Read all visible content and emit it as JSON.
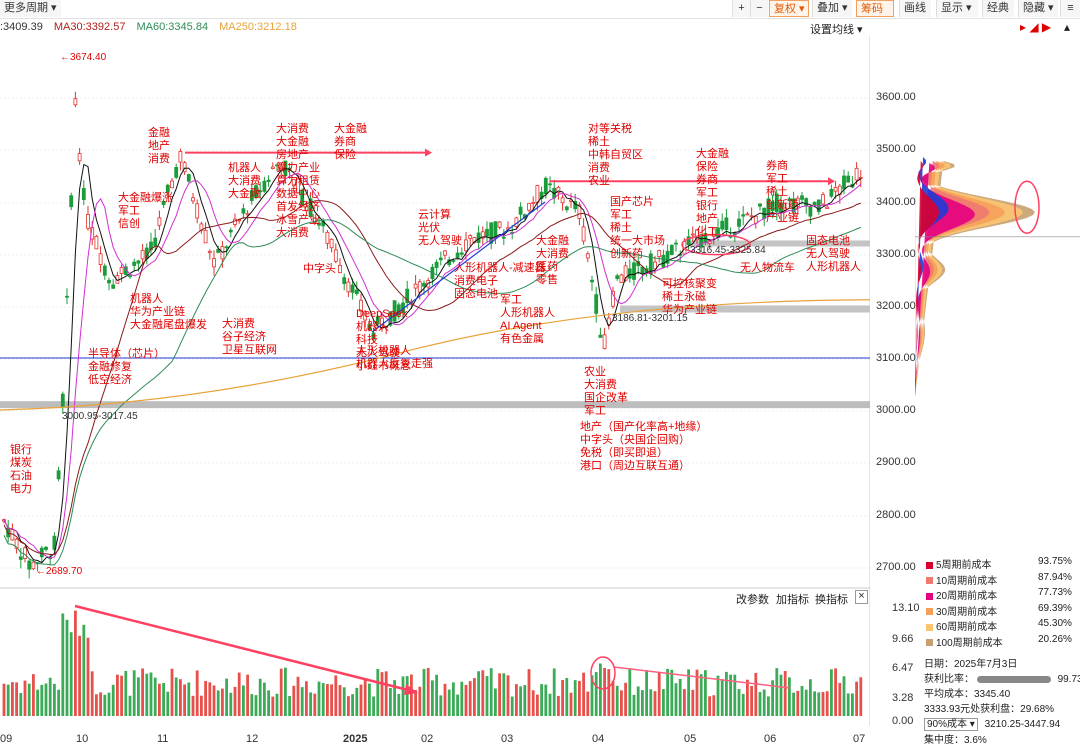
{
  "toolbar": {
    "period_btn": "更多周期",
    "plus": "+",
    "minus": "−",
    "fuquan": "复权",
    "diejia": "叠加",
    "choumou": "筹码",
    "huaxian": "画线",
    "xianshi": "显示",
    "jingdian": "经典",
    "yincang": "隐藏"
  },
  "ma_row": {
    "prefix": ":3409.39",
    "ma30": "MA30:3392.57",
    "ma60": "MA60:3345.84",
    "ma250": "MA250:3212.18",
    "setting": "设置均线"
  },
  "colors": {
    "up": "#e4312b",
    "down": "#1a9c3a",
    "ma5": "#111111",
    "ma10": "#d12fd1",
    "ma30": "#8b1a1a",
    "ma60": "#2e8b57",
    "ma250": "#e8a33a",
    "blue": "#1f3bd6"
  },
  "price_axis": [
    "3600.00",
    "3500.00",
    "3400.00",
    "3300.00",
    "3200.00",
    "3100.00",
    "3000.00",
    "2900.00",
    "2800.00",
    "2700.00"
  ],
  "vol_axis": [
    "13.10",
    "9.66",
    "6.47",
    "3.28",
    "0.00"
  ],
  "x_axis": [
    "09",
    "10",
    "11",
    "12",
    "2025",
    "02",
    "03",
    "04",
    "05",
    "06",
    "07"
  ],
  "price_labels": {
    "high": "←3674.40",
    "low": "←2689.70",
    "range1": "3000.95-3017.45",
    "range2": "3186.81-3201.15",
    "range3": "3316.45-3325.84"
  },
  "annotations": [
    {
      "id": "a1",
      "lines": [
        "银行",
        "煤炭",
        "石油",
        "电力"
      ]
    },
    {
      "id": "a2",
      "lines": [
        "半导体（芯片）",
        "金融修复",
        "低空经济"
      ]
    },
    {
      "id": "a3",
      "lines": [
        "金融",
        "地产",
        "消费"
      ]
    },
    {
      "id": "a4",
      "lines": [
        "大金融爆涨",
        "军工",
        "信创"
      ]
    },
    {
      "id": "a5",
      "lines": [
        "机器人",
        "华为产业链",
        "大金融尾盘爆发"
      ]
    },
    {
      "id": "a6",
      "lines": [
        "机器人",
        "大消费",
        "大金融"
      ]
    },
    {
      "id": "a7",
      "lines": [
        "大消费",
        "谷子经济",
        "卫星互联网"
      ]
    },
    {
      "id": "a8",
      "lines": [
        "大消费",
        "大金融",
        "房地产",
        "算力产业",
        "算力租赁",
        "数据中心",
        "首发经济",
        "冰雪产业",
        "大消费"
      ]
    },
    {
      "id": "a9",
      "lines": [
        "大金融",
        "券商",
        "保险"
      ]
    },
    {
      "id": "a10",
      "lines": [
        "中字头"
      ]
    },
    {
      "id": "a11",
      "lines": [
        "DeepSeek",
        "机器人",
        "科技",
        "无人驾驶",
        "小红书概念"
      ]
    },
    {
      "id": "a12",
      "lines": [
        "云计算",
        "光伏",
        "无人驾驶"
      ]
    },
    {
      "id": "a13",
      "lines": [
        "人形机器人",
        "机器人反复走强"
      ]
    },
    {
      "id": "a14",
      "lines": [
        "人形机器人-减速器",
        "消费电子",
        "固态电池"
      ]
    },
    {
      "id": "a15",
      "lines": [
        "军工",
        "人形机器人",
        "AI Agent",
        "有色金属"
      ]
    },
    {
      "id": "a16",
      "lines": [
        "大金融",
        "大消费",
        "医药",
        "零售"
      ]
    },
    {
      "id": "a17",
      "lines": [
        "对等关税",
        "稀土",
        "中韩自贸区",
        "消费",
        "农业"
      ]
    },
    {
      "id": "a18",
      "lines": [
        "国产芯片",
        "军工",
        "稀土",
        "统一大市场",
        "创新药"
      ]
    },
    {
      "id": "a19",
      "lines": [
        "农业",
        "大消费",
        "国企改革",
        "军工"
      ]
    },
    {
      "id": "a20",
      "lines": [
        "地产（国产化率高+地缘）",
        "中字头（央国企回购）",
        "免税（即买即退）",
        "港口（周边互联互通）"
      ]
    },
    {
      "id": "a21",
      "lines": [
        "可控核聚变",
        "稀土永磁",
        "华为产业链"
      ]
    },
    {
      "id": "a22",
      "lines": [
        "大金融",
        "保险",
        "券商",
        "军工",
        "银行",
        "地产",
        "化工"
      ]
    },
    {
      "id": "a23",
      "lines": [
        "券商",
        "军工",
        "稀土",
        "创新药",
        "产业链"
      ]
    },
    {
      "id": "a24",
      "lines": [
        "无人物流车"
      ]
    },
    {
      "id": "a25",
      "lines": [
        "固态电池",
        "无人驾驶",
        "人形机器人"
      ]
    }
  ],
  "vol_controls": {
    "gaicanshu": "改参数",
    "jiazhibiao": "加指标",
    "huanzhibiao": "换指标",
    "close": "×"
  },
  "chip_legend": [
    {
      "label": "5周期前成本",
      "pct": "93.75%",
      "color": "#d9002f"
    },
    {
      "label": "10周期前成本",
      "pct": "87.94%",
      "color": "#f07a70"
    },
    {
      "label": "20周期前成本",
      "pct": "77.73%",
      "color": "#e4007f"
    },
    {
      "label": "30周期前成本",
      "pct": "69.39%",
      "color": "#f5a05a"
    },
    {
      "label": "60周期前成本",
      "pct": "45.30%",
      "color": "#fcc470"
    },
    {
      "label": "100周期前成本",
      "pct": "20.26%",
      "color": "#c8a070"
    }
  ],
  "chip_info": {
    "date": "日期：2025年7月3日",
    "profit_label": "获利比率：",
    "profit_value": "99.73%",
    "avg_cost": "平均成本：3345.40",
    "profit_line": "3333.93元处获利盘：29.68%",
    "cost_select": "90%成本",
    "cost_range": "3210.25-3447.94",
    "concentration": "集中度：3.6%"
  }
}
